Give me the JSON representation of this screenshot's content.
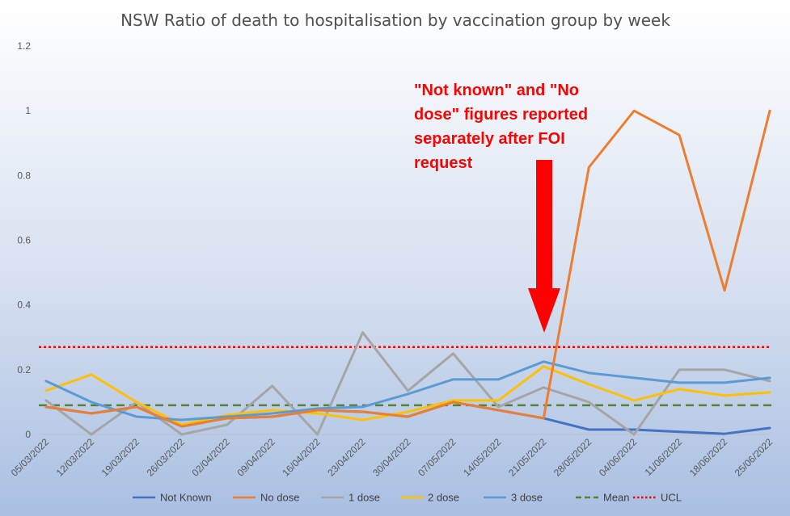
{
  "chart_data": {
    "type": "line",
    "title": "NSW Ratio of death to hospitalisation by vaccination group by week",
    "xlabel": "",
    "ylabel": "",
    "ylim": [
      0,
      1.2
    ],
    "yticks": [
      "0",
      "0.2",
      "0.4",
      "0.6",
      "0.8",
      "1",
      "1.2"
    ],
    "grid": false,
    "legend_position": "bottom",
    "categories": [
      "05/03/2022",
      "12/03/2022",
      "19/03/2022",
      "26/03/2022",
      "02/04/2022",
      "09/04/2022",
      "16/04/2022",
      "23/04/2022",
      "30/04/2022",
      "07/05/2022",
      "14/05/2022",
      "21/05/2022",
      "28/05/2022",
      "04/06/2022",
      "11/06/2022",
      "18/06/2022",
      "25/06/2022"
    ],
    "series": [
      {
        "name": "Not Known",
        "color": "#4472c4",
        "style": "solid",
        "values": [
          0.085,
          0.065,
          0.085,
          0.025,
          0.05,
          0.055,
          0.075,
          0.07,
          0.055,
          0.1,
          0.075,
          0.05,
          0.015,
          0.015,
          0.008,
          0.002,
          0.02
        ]
      },
      {
        "name": "No dose",
        "color": "#ed7d31",
        "style": "solid",
        "values": [
          0.085,
          0.065,
          0.085,
          0.025,
          0.05,
          0.055,
          0.075,
          0.07,
          0.055,
          0.1,
          0.075,
          0.05,
          0.825,
          1.0,
          0.925,
          0.445,
          1.0
        ]
      },
      {
        "name": "1 dose",
        "color": "#a5a5a5",
        "style": "solid",
        "values": [
          0.105,
          0.0,
          0.1,
          0.0,
          0.03,
          0.15,
          0.0,
          0.315,
          0.135,
          0.25,
          0.085,
          0.145,
          0.1,
          0.0,
          0.2,
          0.2,
          0.165
        ]
      },
      {
        "name": "2 dose",
        "color": "#ffc000",
        "style": "solid",
        "values": [
          0.135,
          0.185,
          0.1,
          0.03,
          0.06,
          0.075,
          0.065,
          0.045,
          0.07,
          0.105,
          0.105,
          0.21,
          0.155,
          0.105,
          0.14,
          0.12,
          0.13
        ]
      },
      {
        "name": "3 dose",
        "color": "#5b9bd5",
        "style": "solid",
        "values": [
          0.165,
          0.1,
          0.055,
          0.045,
          0.055,
          0.065,
          0.08,
          0.085,
          0.125,
          0.17,
          0.17,
          0.225,
          0.19,
          0.175,
          0.16,
          0.16,
          0.175
        ]
      },
      {
        "name": "Mean",
        "color": "#548235",
        "style": "dashed",
        "values": [
          0.09,
          0.09,
          0.09,
          0.09,
          0.09,
          0.09,
          0.09,
          0.09,
          0.09,
          0.09,
          0.09,
          0.09,
          0.09,
          0.09,
          0.09,
          0.09,
          0.09
        ]
      },
      {
        "name": "UCL",
        "color": "#ff0000",
        "style": "dotted",
        "values": [
          0.27,
          0.27,
          0.27,
          0.27,
          0.27,
          0.27,
          0.27,
          0.27,
          0.27,
          0.27,
          0.27,
          0.27,
          0.27,
          0.27,
          0.27,
          0.27,
          0.27
        ]
      }
    ],
    "annotation": {
      "lines": [
        "\"Not known\" and \"No",
        "dose\" figures reported",
        "separately  after FOI",
        "request"
      ],
      "arrow_color": "#ff0000",
      "arrow_target_category": "21/05/2022"
    }
  }
}
